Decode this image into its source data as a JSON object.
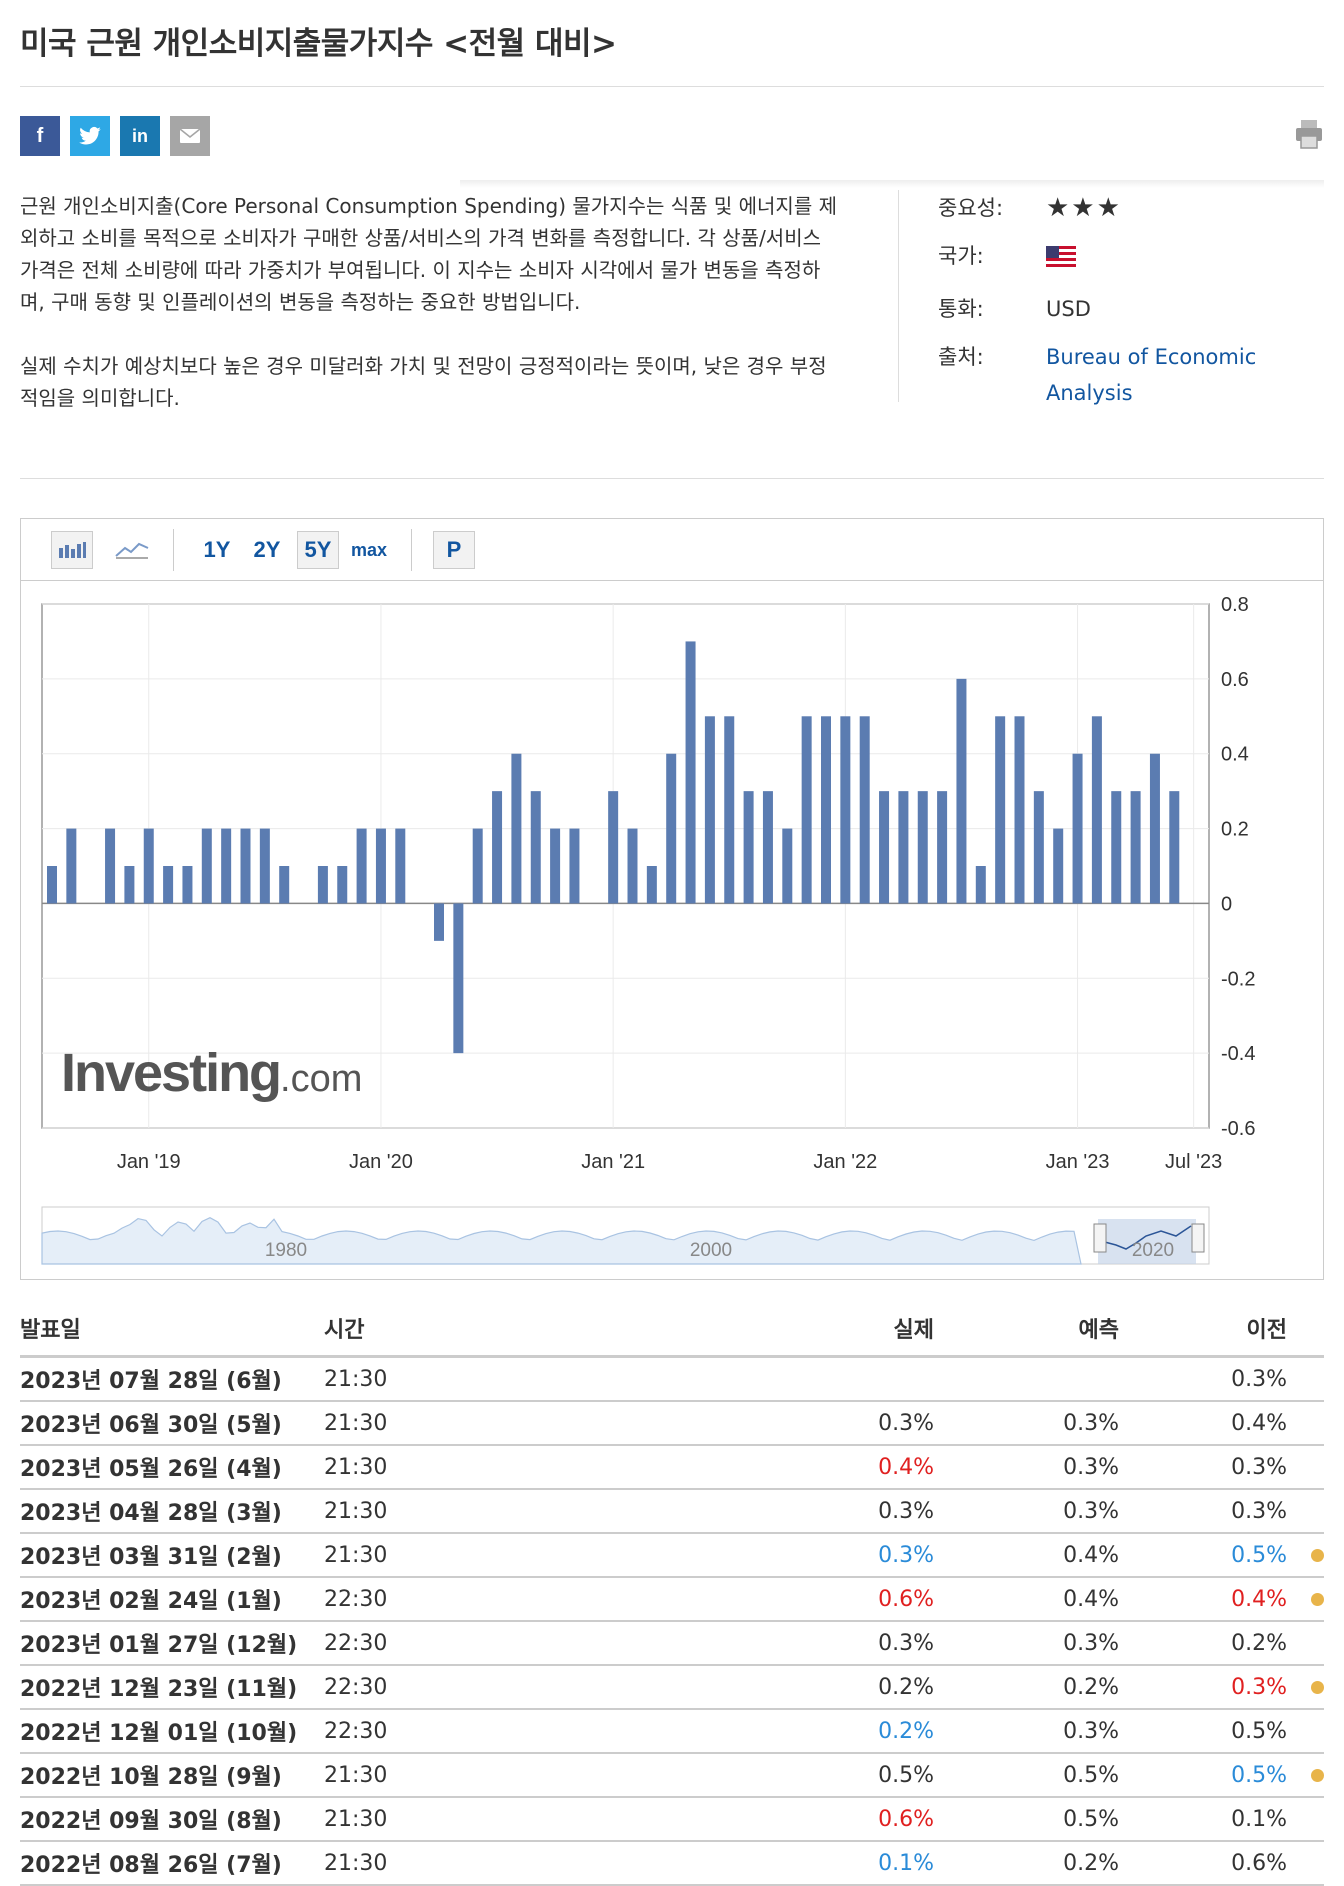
{
  "page": {
    "title": "미국 근원 개인소비지출물가지수 <전월 대비>"
  },
  "share": {
    "facebook": "f",
    "twitter": "t",
    "linkedin": "in",
    "email": "✉"
  },
  "description": {
    "p1": "근원 개인소비지출(Core Personal Consumption Spending) 물가지수는 식품 및 에너지를 제외하고 소비를 목적으로 소비자가 구매한 상품/서비스의 가격 변화를 측정합니다. 각 상품/서비스 가격은 전체 소비량에 따라 가중치가 부여됩니다. 이 지수는 소비자 시각에서 물가 변동을 측정하며, 구매 동향 및 인플레이션의 변동을 측정하는 중요한 방법입니다.",
    "p2": "실제 수치가 예상치보다 높은 경우 미달러화 가치 및 전망이 긍정적이라는 뜻이며, 낮은 경우 부정적임을 의미합니다."
  },
  "meta": {
    "importance_label": "중요성:",
    "importance_stars": "★★★",
    "country_label": "국가:",
    "currency_label": "통화:",
    "currency": "USD",
    "source_label": "출처:",
    "source_line1": "Bureau of Economic",
    "source_line2": "Analysis"
  },
  "toolbar": {
    "r1y": "1Y",
    "r2y": "2Y",
    "r5y": "5Y",
    "rmax": "max",
    "p": "P"
  },
  "chart_data": {
    "type": "bar",
    "ylim": [
      -0.6,
      0.8
    ],
    "yticks": [
      "0.8",
      "0.6",
      "0.4",
      "0.2",
      "0",
      "-0.2",
      "-0.4",
      "-0.6"
    ],
    "xticks": [
      {
        "label": "Jan '19",
        "index": 5
      },
      {
        "label": "Jan '20",
        "index": 17
      },
      {
        "label": "Jan '21",
        "index": 29
      },
      {
        "label": "Jan '22",
        "index": 41
      },
      {
        "label": "Jan '23",
        "index": 53
      },
      {
        "label": "Jul '23",
        "index": 59
      }
    ],
    "values": [
      0.1,
      0.2,
      0,
      0.2,
      0.1,
      0.2,
      0.1,
      0.1,
      0.2,
      0.2,
      0.2,
      0.2,
      0.1,
      0,
      0.1,
      0.1,
      0.2,
      0.2,
      0.2,
      0,
      -0.1,
      -0.4,
      0.2,
      0.3,
      0.4,
      0.3,
      0.2,
      0.2,
      0,
      0.3,
      0.2,
      0.1,
      0.4,
      0.7,
      0.5,
      0.5,
      0.3,
      0.3,
      0.2,
      0.5,
      0.5,
      0.5,
      0.5,
      0.3,
      0.3,
      0.3,
      0.3,
      0.6,
      0.1,
      0.5,
      0.5,
      0.3,
      0.2,
      0.4,
      0.5,
      0.3,
      0.3,
      0.4,
      0.3
    ],
    "watermark": "Investing.com",
    "navigator_labels": [
      "1980",
      "2000",
      "2020"
    ]
  },
  "table": {
    "headers": {
      "date": "발표일",
      "time": "시간",
      "actual": "실제",
      "forecast": "예측",
      "previous": "이전"
    },
    "rows": [
      {
        "date": "2023년 07월 28일 (6월)",
        "time": "21:30",
        "actual": "",
        "forecast": "",
        "previous": "0.3%"
      },
      {
        "date": "2023년 06월 30일 (5월)",
        "time": "21:30",
        "actual": "0.3%",
        "forecast": "0.3%",
        "previous": "0.4%"
      },
      {
        "date": "2023년 05월 26일 (4월)",
        "time": "21:30",
        "actual": "0.4%",
        "forecast": "0.3%",
        "previous": "0.3%"
      },
      {
        "date": "2023년 04월 28일 (3월)",
        "time": "21:30",
        "actual": "0.3%",
        "forecast": "0.3%",
        "previous": "0.3%"
      },
      {
        "date": "2023년 03월 31일 (2월)",
        "time": "21:30",
        "actual": "0.3%",
        "forecast": "0.4%",
        "previous": "0.5%"
      },
      {
        "date": "2023년 02월 24일 (1월)",
        "time": "22:30",
        "actual": "0.6%",
        "forecast": "0.4%",
        "previous": "0.4%"
      },
      {
        "date": "2023년 01월 27일 (12월)",
        "time": "22:30",
        "actual": "0.3%",
        "forecast": "0.3%",
        "previous": "0.2%"
      },
      {
        "date": "2022년 12월 23일 (11월)",
        "time": "22:30",
        "actual": "0.2%",
        "forecast": "0.2%",
        "previous": "0.3%"
      },
      {
        "date": "2022년 12월 01일 (10월)",
        "time": "22:30",
        "actual": "0.2%",
        "forecast": "0.3%",
        "previous": "0.5%"
      },
      {
        "date": "2022년 10월 28일 (9월)",
        "time": "21:30",
        "actual": "0.5%",
        "forecast": "0.5%",
        "previous": "0.5%"
      },
      {
        "date": "2022년 09월 30일 (8월)",
        "time": "21:30",
        "actual": "0.6%",
        "forecast": "0.5%",
        "previous": "0.1%"
      },
      {
        "date": "2022년 08월 26일 (7월)",
        "time": "21:30",
        "actual": "0.1%",
        "forecast": "0.2%",
        "previous": "0.6%"
      }
    ]
  }
}
